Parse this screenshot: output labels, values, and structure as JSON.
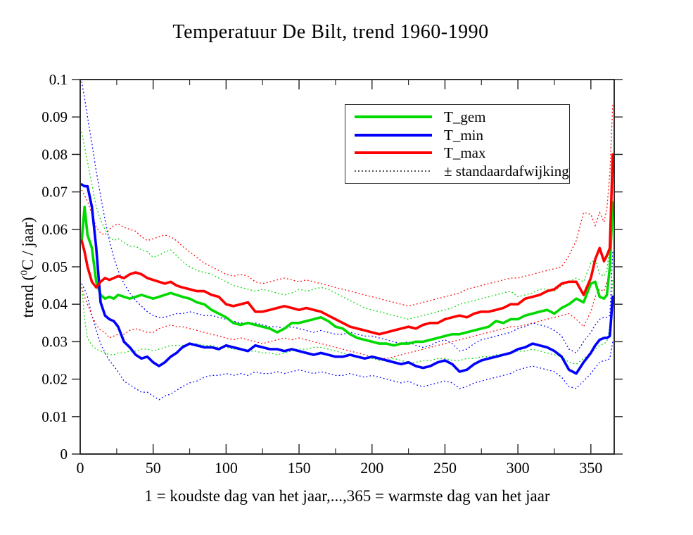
{
  "title": "Temperatuur De Bilt, trend 1960-1990",
  "x_axis": {
    "label": "1 = koudste dag van het jaar,...,365 = warmste dag van het jaar",
    "tick_values": [
      0,
      50,
      100,
      150,
      200,
      250,
      300,
      350
    ],
    "tick_labels": [
      "0",
      "50",
      "100",
      "150",
      "200",
      "250",
      "300",
      "350"
    ],
    "minor_tick_values": [
      25,
      75,
      125,
      175,
      225,
      275,
      325
    ],
    "min": 0,
    "max": 366
  },
  "y_axis": {
    "label_prefix": "trend (",
    "label_superscript": "0",
    "label_suffix": "C / jaar)",
    "tick_values": [
      0,
      0.01,
      0.02,
      0.03,
      0.04,
      0.05,
      0.06,
      0.07,
      0.08,
      0.09,
      0.1
    ],
    "tick_labels": [
      "0",
      "0.01",
      "0.02",
      "0.03",
      "0.04",
      "0.05",
      "0.06",
      "0.07",
      "0.08",
      "0.09",
      "0.1"
    ],
    "min": 0,
    "max": 0.1
  },
  "legend": {
    "items": [
      {
        "label": "T_gem",
        "color": "#00d900",
        "style": "solid"
      },
      {
        "label": "T_min",
        "color": "#0000ff",
        "style": "solid"
      },
      {
        "label": "T_max",
        "color": "#ff0000",
        "style": "solid"
      },
      {
        "label": "± standaardafwijking",
        "color": "#555555",
        "style": "dotted"
      }
    ]
  },
  "colors": {
    "frame": "#2f2f2f",
    "text": "#000000"
  },
  "chart_data": {
    "type": "line",
    "title": "Temperatuur De Bilt, trend 1960-1990",
    "xlabel": "1 = koudste dag van het jaar,...,365 = warmste dag van het jaar",
    "ylabel": "trend (⁰C / jaar)",
    "xlim": [
      0,
      366
    ],
    "ylim": [
      0,
      0.1
    ],
    "grid": false,
    "legend_position": "upper center-right",
    "x": [
      1,
      3,
      5,
      8,
      11,
      14,
      17,
      20,
      23,
      26,
      30,
      34,
      38,
      42,
      46,
      50,
      54,
      58,
      62,
      66,
      70,
      75,
      80,
      85,
      90,
      95,
      100,
      105,
      110,
      115,
      120,
      125,
      130,
      135,
      140,
      145,
      150,
      155,
      160,
      165,
      170,
      175,
      180,
      185,
      190,
      195,
      200,
      205,
      210,
      215,
      220,
      225,
      230,
      235,
      240,
      245,
      250,
      255,
      260,
      265,
      270,
      275,
      280,
      285,
      290,
      295,
      300,
      305,
      310,
      315,
      320,
      325,
      330,
      335,
      340,
      345,
      350,
      353,
      356,
      359,
      361,
      363,
      365
    ],
    "series": [
      {
        "name": "T_gem",
        "key": "t-gem",
        "color": "#00d900",
        "style": "solid",
        "values": [
          0.057,
          0.066,
          0.0585,
          0.055,
          0.046,
          0.0425,
          0.0415,
          0.042,
          0.0415,
          0.0425,
          0.042,
          0.0415,
          0.042,
          0.0425,
          0.042,
          0.0415,
          0.042,
          0.0425,
          0.043,
          0.0425,
          0.042,
          0.0415,
          0.0405,
          0.04,
          0.0385,
          0.0375,
          0.0365,
          0.035,
          0.0345,
          0.035,
          0.0345,
          0.034,
          0.0335,
          0.0325,
          0.0335,
          0.035,
          0.035,
          0.0355,
          0.036,
          0.0365,
          0.0355,
          0.034,
          0.0335,
          0.032,
          0.031,
          0.0305,
          0.03,
          0.0295,
          0.0295,
          0.029,
          0.0295,
          0.0295,
          0.03,
          0.03,
          0.0305,
          0.031,
          0.0315,
          0.032,
          0.032,
          0.0325,
          0.033,
          0.0335,
          0.034,
          0.0355,
          0.035,
          0.036,
          0.036,
          0.037,
          0.0375,
          0.038,
          0.0385,
          0.0375,
          0.039,
          0.04,
          0.0415,
          0.0405,
          0.0455,
          0.046,
          0.042,
          0.0415,
          0.0425,
          0.05,
          0.067
        ]
      },
      {
        "name": "T_min",
        "key": "t-min",
        "color": "#0000ff",
        "style": "solid",
        "values": [
          0.072,
          0.0715,
          0.0715,
          0.066,
          0.055,
          0.0405,
          0.037,
          0.036,
          0.0355,
          0.034,
          0.03,
          0.0285,
          0.0265,
          0.0255,
          0.026,
          0.0245,
          0.0235,
          0.0245,
          0.026,
          0.027,
          0.0285,
          0.0295,
          0.029,
          0.0285,
          0.0285,
          0.028,
          0.029,
          0.0285,
          0.028,
          0.0275,
          0.029,
          0.0285,
          0.028,
          0.028,
          0.0275,
          0.028,
          0.0275,
          0.027,
          0.0265,
          0.027,
          0.0265,
          0.026,
          0.026,
          0.0265,
          0.026,
          0.0255,
          0.026,
          0.0255,
          0.025,
          0.0245,
          0.024,
          0.0245,
          0.0235,
          0.023,
          0.0235,
          0.0245,
          0.025,
          0.024,
          0.022,
          0.0225,
          0.024,
          0.025,
          0.0255,
          0.026,
          0.0265,
          0.027,
          0.028,
          0.0285,
          0.0295,
          0.029,
          0.0285,
          0.0275,
          0.026,
          0.0225,
          0.0215,
          0.0245,
          0.027,
          0.029,
          0.0305,
          0.031,
          0.031,
          0.0315,
          0.042
        ]
      },
      {
        "name": "T_max",
        "key": "t-max",
        "color": "#ff0000",
        "style": "solid",
        "values": [
          0.057,
          0.054,
          0.05,
          0.046,
          0.0445,
          0.046,
          0.047,
          0.0465,
          0.047,
          0.0475,
          0.047,
          0.048,
          0.0485,
          0.048,
          0.047,
          0.0465,
          0.046,
          0.0455,
          0.046,
          0.045,
          0.0445,
          0.044,
          0.0435,
          0.0435,
          0.0425,
          0.042,
          0.04,
          0.0395,
          0.04,
          0.0405,
          0.038,
          0.038,
          0.0385,
          0.039,
          0.0395,
          0.039,
          0.0385,
          0.039,
          0.0385,
          0.038,
          0.037,
          0.036,
          0.035,
          0.034,
          0.0335,
          0.033,
          0.0325,
          0.032,
          0.0325,
          0.033,
          0.0335,
          0.034,
          0.0335,
          0.0345,
          0.035,
          0.035,
          0.036,
          0.0365,
          0.037,
          0.0365,
          0.0375,
          0.038,
          0.038,
          0.0385,
          0.039,
          0.04,
          0.04,
          0.0415,
          0.042,
          0.0425,
          0.0435,
          0.044,
          0.0455,
          0.046,
          0.046,
          0.0425,
          0.047,
          0.052,
          0.055,
          0.0515,
          0.053,
          0.055,
          0.08
        ]
      },
      {
        "name": "T_gem + standaardafwijking",
        "key": "t-gem-upper-std",
        "color": "#00d900",
        "style": "dotted",
        "values": [
          0.086,
          0.082,
          0.078,
          0.072,
          0.066,
          0.0625,
          0.06,
          0.058,
          0.057,
          0.0575,
          0.0565,
          0.0555,
          0.0555,
          0.0545,
          0.054,
          0.0525,
          0.053,
          0.054,
          0.0545,
          0.053,
          0.0515,
          0.05,
          0.049,
          0.0485,
          0.048,
          0.047,
          0.046,
          0.045,
          0.0445,
          0.044,
          0.0435,
          0.044,
          0.0435,
          0.043,
          0.0425,
          0.043,
          0.044,
          0.0435,
          0.044,
          0.0445,
          0.044,
          0.043,
          0.042,
          0.041,
          0.04,
          0.039,
          0.0385,
          0.038,
          0.0375,
          0.037,
          0.0365,
          0.036,
          0.0365,
          0.037,
          0.0375,
          0.038,
          0.0385,
          0.039,
          0.04,
          0.0405,
          0.041,
          0.0415,
          0.042,
          0.0425,
          0.043,
          0.0435,
          0.042,
          0.0425,
          0.043,
          0.044,
          0.044,
          0.0435,
          0.045,
          0.046,
          0.047,
          0.046,
          0.051,
          0.052,
          0.048,
          0.0475,
          0.049,
          0.056,
          0.068
        ]
      },
      {
        "name": "T_gem - standaardafwijking",
        "key": "t-gem-lower-std",
        "color": "#00d900",
        "style": "dotted",
        "values": [
          0.0455,
          0.036,
          0.031,
          0.029,
          0.028,
          0.0275,
          0.027,
          0.0265,
          0.0265,
          0.027,
          0.027,
          0.0275,
          0.0275,
          0.028,
          0.028,
          0.0275,
          0.028,
          0.0285,
          0.029,
          0.029,
          0.029,
          0.0295,
          0.0295,
          0.029,
          0.029,
          0.0285,
          0.0285,
          0.028,
          0.028,
          0.0275,
          0.0275,
          0.027,
          0.027,
          0.0265,
          0.027,
          0.0275,
          0.028,
          0.028,
          0.0285,
          0.0285,
          0.028,
          0.0275,
          0.027,
          0.0265,
          0.026,
          0.0255,
          0.0255,
          0.025,
          0.025,
          0.0255,
          0.025,
          0.0245,
          0.0245,
          0.025,
          0.025,
          0.0255,
          0.0255,
          0.025,
          0.025,
          0.0255,
          0.0255,
          0.026,
          0.026,
          0.0265,
          0.0265,
          0.027,
          0.0275,
          0.0275,
          0.028,
          0.0275,
          0.027,
          0.0265,
          0.026,
          0.0245,
          0.024,
          0.0255,
          0.027,
          0.028,
          0.029,
          0.0295,
          0.03,
          0.034,
          0.047
        ]
      },
      {
        "name": "T_min + standaardafwijking",
        "key": "t-min-upper-std",
        "color": "#0000ff",
        "style": "dotted",
        "values": [
          0.0995,
          0.095,
          0.09,
          0.083,
          0.0755,
          0.069,
          0.0625,
          0.057,
          0.0525,
          0.049,
          0.0455,
          0.043,
          0.041,
          0.0395,
          0.038,
          0.037,
          0.0365,
          0.0365,
          0.037,
          0.0375,
          0.0375,
          0.038,
          0.0375,
          0.037,
          0.037,
          0.0365,
          0.036,
          0.0355,
          0.035,
          0.035,
          0.035,
          0.0345,
          0.034,
          0.034,
          0.0335,
          0.034,
          0.0335,
          0.033,
          0.0325,
          0.033,
          0.0325,
          0.032,
          0.032,
          0.0325,
          0.032,
          0.0315,
          0.0315,
          0.031,
          0.0305,
          0.03,
          0.0295,
          0.03,
          0.029,
          0.0285,
          0.029,
          0.03,
          0.0305,
          0.0295,
          0.0275,
          0.028,
          0.0295,
          0.0305,
          0.031,
          0.0315,
          0.032,
          0.0325,
          0.0335,
          0.034,
          0.035,
          0.0345,
          0.034,
          0.033,
          0.0315,
          0.028,
          0.027,
          0.03,
          0.0325,
          0.0345,
          0.036,
          0.0365,
          0.0365,
          0.037,
          0.054
        ]
      },
      {
        "name": "T_min - standaardafwijking",
        "key": "t-min-lower-std",
        "color": "#0000ff",
        "style": "dotted",
        "values": [
          0.0455,
          0.044,
          0.042,
          0.037,
          0.033,
          0.0295,
          0.027,
          0.025,
          0.0235,
          0.022,
          0.0195,
          0.0185,
          0.0175,
          0.0165,
          0.0165,
          0.0155,
          0.0145,
          0.0155,
          0.016,
          0.017,
          0.018,
          0.019,
          0.0195,
          0.0205,
          0.021,
          0.021,
          0.0215,
          0.021,
          0.0215,
          0.021,
          0.022,
          0.0215,
          0.0215,
          0.022,
          0.0215,
          0.022,
          0.0225,
          0.022,
          0.0215,
          0.022,
          0.0215,
          0.021,
          0.021,
          0.0215,
          0.021,
          0.0205,
          0.021,
          0.0205,
          0.02,
          0.0195,
          0.019,
          0.0195,
          0.0185,
          0.018,
          0.0185,
          0.019,
          0.0195,
          0.019,
          0.0175,
          0.018,
          0.019,
          0.0195,
          0.02,
          0.0205,
          0.021,
          0.0215,
          0.0225,
          0.023,
          0.0235,
          0.023,
          0.0225,
          0.022,
          0.0205,
          0.018,
          0.0175,
          0.0195,
          0.0215,
          0.023,
          0.0245,
          0.025,
          0.025,
          0.0255,
          0.03
        ]
      },
      {
        "name": "T_max + standaardafwijking",
        "key": "t-max-upper-std",
        "color": "#ff0000",
        "style": "dotted",
        "values": [
          0.0705,
          0.069,
          0.0675,
          0.064,
          0.0605,
          0.059,
          0.0585,
          0.06,
          0.061,
          0.0615,
          0.0605,
          0.06,
          0.0595,
          0.058,
          0.057,
          0.0575,
          0.058,
          0.0585,
          0.058,
          0.057,
          0.0555,
          0.054,
          0.0525,
          0.051,
          0.05,
          0.049,
          0.048,
          0.0475,
          0.048,
          0.0475,
          0.046,
          0.0455,
          0.046,
          0.0465,
          0.047,
          0.0465,
          0.046,
          0.0465,
          0.046,
          0.0455,
          0.045,
          0.0445,
          0.044,
          0.0435,
          0.043,
          0.0425,
          0.042,
          0.0415,
          0.041,
          0.0405,
          0.04,
          0.0395,
          0.04,
          0.0405,
          0.041,
          0.0415,
          0.042,
          0.0425,
          0.043,
          0.044,
          0.0445,
          0.045,
          0.0455,
          0.046,
          0.0465,
          0.047,
          0.047,
          0.0475,
          0.048,
          0.0485,
          0.049,
          0.0495,
          0.05,
          0.053,
          0.057,
          0.0645,
          0.064,
          0.061,
          0.0645,
          0.062,
          0.0655,
          0.075,
          0.0935
        ]
      },
      {
        "name": "T_max - standaardafwijking",
        "key": "t-max-lower-std",
        "color": "#ff0000",
        "style": "dotted",
        "values": [
          0.0445,
          0.042,
          0.04,
          0.037,
          0.0345,
          0.033,
          0.0325,
          0.031,
          0.0315,
          0.032,
          0.032,
          0.033,
          0.0335,
          0.033,
          0.0325,
          0.0325,
          0.0335,
          0.034,
          0.0345,
          0.034,
          0.034,
          0.0335,
          0.033,
          0.0325,
          0.032,
          0.0315,
          0.031,
          0.0305,
          0.031,
          0.0305,
          0.03,
          0.0295,
          0.03,
          0.0305,
          0.031,
          0.0305,
          0.031,
          0.0305,
          0.03,
          0.0295,
          0.029,
          0.0285,
          0.028,
          0.0275,
          0.027,
          0.0265,
          0.026,
          0.0255,
          0.0255,
          0.026,
          0.0265,
          0.027,
          0.0275,
          0.028,
          0.0285,
          0.029,
          0.0295,
          0.03,
          0.0305,
          0.031,
          0.0315,
          0.032,
          0.0325,
          0.033,
          0.0335,
          0.034,
          0.034,
          0.0345,
          0.035,
          0.0355,
          0.036,
          0.0365,
          0.037,
          0.0375,
          0.036,
          0.034,
          0.038,
          0.042,
          0.044,
          0.0435,
          0.046,
          0.048,
          0.0665
        ]
      }
    ]
  }
}
